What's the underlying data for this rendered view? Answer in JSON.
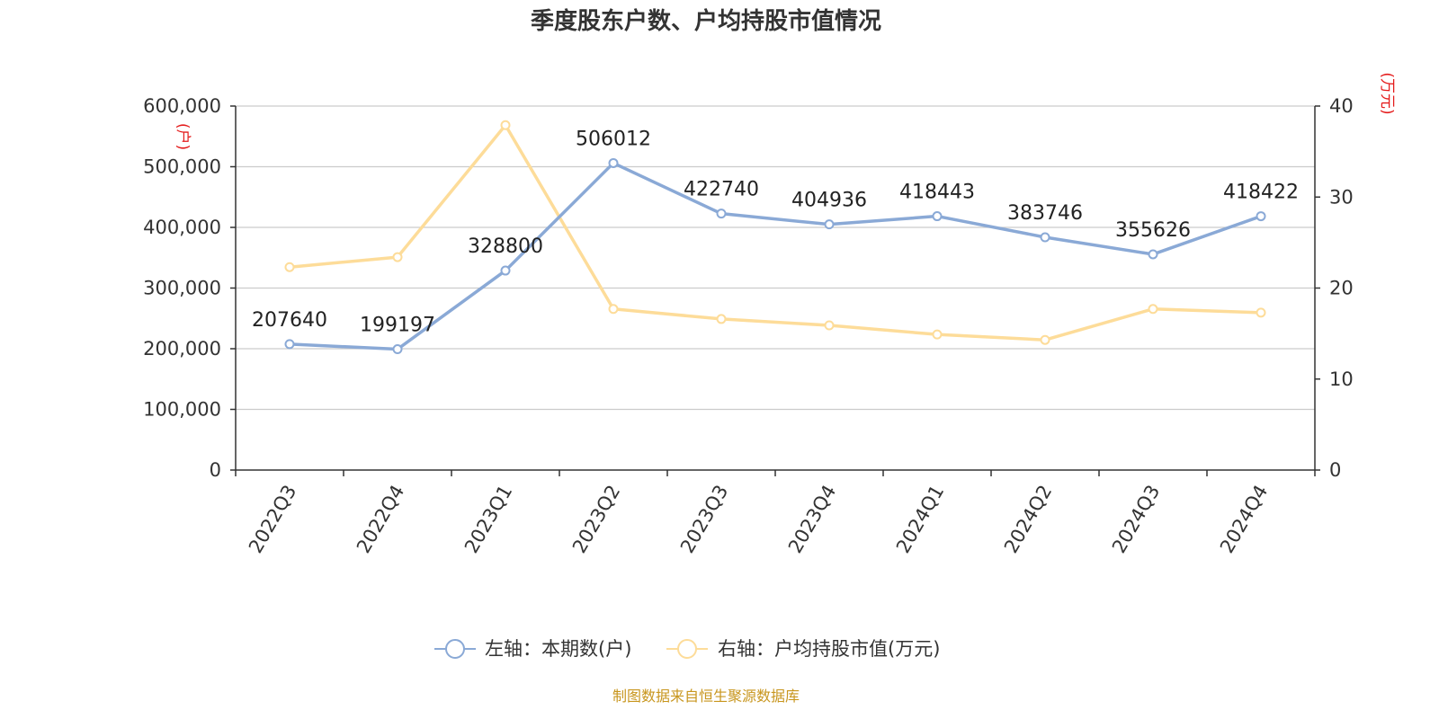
{
  "title": "季度股东户数、户均持股市值情况",
  "source": "制图数据来自恒生聚源数据库",
  "colors": {
    "left_series": "#8aa9d6",
    "right_series": "#fddc99",
    "unit_label": "#e41a1a",
    "source": "#c8961e"
  },
  "chart_data": {
    "type": "line",
    "categories": [
      "2022Q3",
      "2022Q4",
      "2023Q1",
      "2023Q2",
      "2023Q3",
      "2023Q4",
      "2024Q1",
      "2024Q2",
      "2024Q3",
      "2024Q4"
    ],
    "y_left": {
      "unit": "(户)",
      "ylim": [
        0,
        600000
      ],
      "ticks": [
        "0",
        "100,000",
        "200,000",
        "300,000",
        "400,000",
        "500,000",
        "600,000"
      ]
    },
    "y_right": {
      "unit": "(万元)",
      "ylim": [
        0,
        40
      ],
      "ticks": [
        "0",
        "10",
        "20",
        "30",
        "40"
      ]
    },
    "grid": true,
    "legend_position": "bottom",
    "series": [
      {
        "name": "左轴：本期数(户)",
        "axis": "left",
        "values": [
          207640,
          199197,
          328800,
          506012,
          422740,
          404936,
          418443,
          383746,
          355626,
          418422
        ],
        "labels": [
          "207640",
          "199197",
          "328800",
          "506012",
          "422740",
          "404936",
          "418443",
          "383746",
          "355626",
          "418422"
        ]
      },
      {
        "name": "右轴：户均持股市值(万元)",
        "axis": "right",
        "values": [
          22.3,
          23.4,
          37.9,
          17.7,
          16.6,
          15.9,
          14.9,
          14.3,
          17.7,
          17.3
        ]
      }
    ]
  }
}
